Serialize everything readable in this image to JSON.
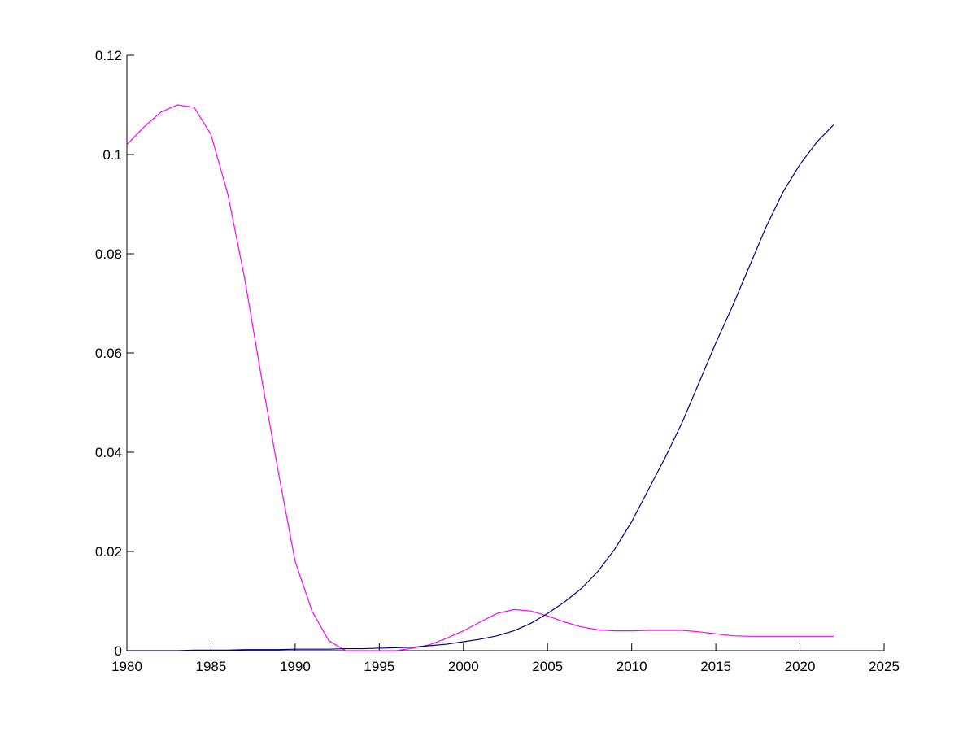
{
  "chart_data": {
    "type": "line",
    "x": [
      1980,
      1981,
      1982,
      1983,
      1984,
      1985,
      1986,
      1987,
      1988,
      1989,
      1990,
      1991,
      1992,
      1993,
      1994,
      1995,
      1996,
      1997,
      1998,
      1999,
      2000,
      2001,
      2002,
      2003,
      2004,
      2005,
      2006,
      2007,
      2008,
      2009,
      2010,
      2011,
      2012,
      2013,
      2014,
      2015,
      2016,
      2017,
      2018,
      2019,
      2020,
      2021,
      2022
    ],
    "series": [
      {
        "color": "#ff00ff",
        "values": [
          0.102,
          0.1055,
          0.1085,
          0.11,
          0.1095,
          0.104,
          0.092,
          0.075,
          0.055,
          0.036,
          0.018,
          0.008,
          0.002,
          0.0,
          0.0,
          0.0,
          0.0,
          0.0005,
          0.0012,
          0.0025,
          0.004,
          0.0058,
          0.0075,
          0.0083,
          0.008,
          0.007,
          0.0058,
          0.0048,
          0.0042,
          0.004,
          0.004,
          0.0041,
          0.0041,
          0.0041,
          0.0038,
          0.0034,
          0.003,
          0.0029,
          0.0029,
          0.0029,
          0.0029,
          0.0029,
          0.0029
        ]
      },
      {
        "color": "#000080",
        "values": [
          0,
          0,
          0,
          0,
          0.0001,
          0.0001,
          0.0001,
          0.0002,
          0.0002,
          0.0002,
          0.0003,
          0.0003,
          0.0003,
          0.0004,
          0.0004,
          0.0005,
          0.0006,
          0.0007,
          0.001,
          0.0013,
          0.0018,
          0.0023,
          0.003,
          0.004,
          0.0055,
          0.0075,
          0.0098,
          0.0125,
          0.016,
          0.0205,
          0.026,
          0.0325,
          0.039,
          0.046,
          0.054,
          0.062,
          0.0695,
          0.0775,
          0.0855,
          0.0925,
          0.098,
          0.1025,
          0.106
        ]
      }
    ],
    "xlim": [
      1980,
      2025
    ],
    "xticks": [
      1980,
      1985,
      1990,
      1995,
      2000,
      2005,
      2010,
      2015,
      2020,
      2025
    ],
    "ylim": [
      0,
      0.12
    ],
    "yticks": [
      0,
      0.02,
      0.04,
      0.06,
      0.08,
      0.1,
      0.12
    ],
    "grid": false
  }
}
